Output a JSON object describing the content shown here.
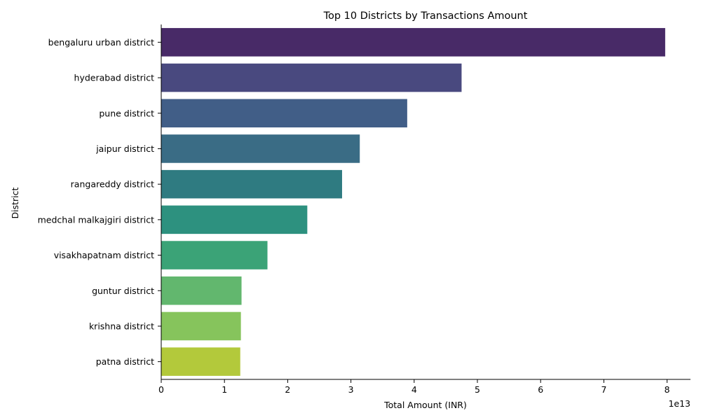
{
  "chart_data": {
    "type": "bar",
    "orientation": "horizontal",
    "title": "Top 10 Districts by Transactions Amount",
    "xlabel": "Total Amount (INR)",
    "ylabel": "District",
    "x_offset_label": "1e13",
    "x_ticks": [
      "0",
      "1",
      "2",
      "3",
      "4",
      "5",
      "6",
      "7",
      "8"
    ],
    "xlim": [
      0,
      8.37
    ],
    "categories": [
      "bengaluru urban district",
      "hyderabad district",
      "pune district",
      "jaipur district",
      "rangareddy district",
      "medchal malkajgiri district",
      "visakhapatnam district",
      "guntur district",
      "krishna district",
      "patna district"
    ],
    "values": [
      7.97,
      4.75,
      3.89,
      3.14,
      2.86,
      2.31,
      1.68,
      1.27,
      1.26,
      1.25
    ],
    "colors": [
      "#482a67",
      "#49497f",
      "#415e87",
      "#3a6c85",
      "#2f7b81",
      "#2d917f",
      "#3ba377",
      "#62b76e",
      "#86c45c",
      "#b3c93b"
    ],
    "grid": false,
    "legend": "none"
  }
}
